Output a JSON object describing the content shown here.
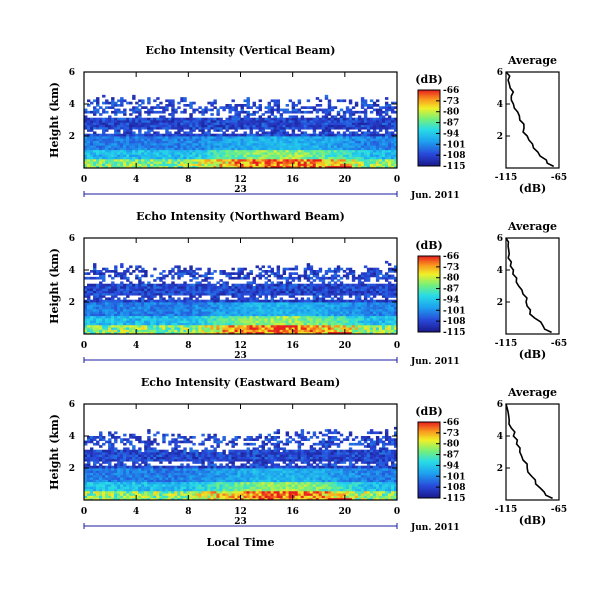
{
  "chart_data": [
    {
      "type": "heatmap",
      "title": "Echo Intensity (Vertical Beam)",
      "ylabel": "Height (km)",
      "x_ticks": [
        "0",
        "4",
        "8",
        "12",
        "16",
        "20",
        "0"
      ],
      "y_ticks": [
        "2",
        "4",
        "6"
      ],
      "xlim": [
        0,
        24
      ],
      "ylim": [
        0,
        6
      ],
      "date_label": "23",
      "date_suffix": "Jun. 2011",
      "xlabel": "",
      "colorbar": {
        "title": "(dB)",
        "ticks": [
          "-66",
          "-73",
          "-80",
          "-87",
          "-94",
          "-101",
          "-108",
          "-115"
        ],
        "range": [
          -115,
          -66
        ]
      },
      "echo_top_km": [
        4.0,
        4.1,
        4.2,
        4.1,
        4.0,
        4.0,
        3.9,
        3.9,
        3.9,
        3.8,
        3.8,
        3.8,
        3.9,
        3.9,
        3.9,
        3.9,
        4.0,
        4.0,
        4.1,
        4.0,
        4.0,
        4.0,
        4.0,
        4.1
      ],
      "average_profile": {
        "title": "Average",
        "xlabel": "(dB)",
        "x_ticks": [
          "-115",
          "-65"
        ],
        "xlim": [
          -115,
          -65
        ],
        "y_ticks": [
          "2",
          "4",
          "6"
        ],
        "ylim": [
          0,
          6
        ],
        "height_km": [
          0.1,
          0.5,
          1.0,
          1.5,
          2.0,
          2.5,
          3.0,
          3.5,
          4.0,
          4.5,
          5.0,
          5.5,
          6.0
        ],
        "value_db": [
          -70,
          -77,
          -85,
          -90,
          -95,
          -98,
          -102,
          -104,
          -108,
          -110,
          -111,
          -113,
          -115
        ]
      }
    },
    {
      "type": "heatmap",
      "title": "Echo Intensity (Northward Beam)",
      "ylabel": "Height (km)",
      "x_ticks": [
        "0",
        "4",
        "8",
        "12",
        "16",
        "20",
        "0"
      ],
      "y_ticks": [
        "2",
        "4",
        "6"
      ],
      "xlim": [
        0,
        24
      ],
      "ylim": [
        0,
        6
      ],
      "date_label": "23",
      "date_suffix": "Jun. 2011",
      "xlabel": "",
      "colorbar": {
        "title": "(dB)",
        "ticks": [
          "-66",
          "-73",
          "-80",
          "-87",
          "-94",
          "-101",
          "-108",
          "-115"
        ],
        "range": [
          -115,
          -66
        ]
      },
      "echo_top_km": [
        3.9,
        4.0,
        4.1,
        4.0,
        3.9,
        3.9,
        3.8,
        3.8,
        3.8,
        3.7,
        3.7,
        3.8,
        3.8,
        3.8,
        3.9,
        3.9,
        3.9,
        4.0,
        4.0,
        4.0,
        3.9,
        4.0,
        4.0,
        4.1
      ],
      "average_profile": {
        "title": "Average",
        "xlabel": "(dB)",
        "x_ticks": [
          "-115",
          "-65"
        ],
        "xlim": [
          -115,
          -65
        ],
        "y_ticks": [
          "2",
          "4",
          "6"
        ],
        "ylim": [
          0,
          6
        ],
        "height_km": [
          0.1,
          0.5,
          1.0,
          1.5,
          2.0,
          2.5,
          3.0,
          3.5,
          4.0,
          4.5,
          5.0,
          5.5,
          6.0
        ],
        "value_db": [
          -72,
          -80,
          -88,
          -92,
          -96,
          -99,
          -103,
          -105,
          -108,
          -110,
          -112,
          -113,
          -115
        ]
      }
    },
    {
      "type": "heatmap",
      "title": "Echo Intensity (Eastward Beam)",
      "ylabel": "Height (km)",
      "x_ticks": [
        "0",
        "4",
        "8",
        "12",
        "16",
        "20",
        "0"
      ],
      "y_ticks": [
        "2",
        "4",
        "6"
      ],
      "xlim": [
        0,
        24
      ],
      "ylim": [
        0,
        6
      ],
      "date_label": "23",
      "date_suffix": "Jun. 2011",
      "xlabel": "Local Time",
      "colorbar": {
        "title": "(dB)",
        "ticks": [
          "-66",
          "-73",
          "-80",
          "-87",
          "-94",
          "-101",
          "-108",
          "-115"
        ],
        "range": [
          -115,
          -66
        ]
      },
      "echo_top_km": [
        3.9,
        4.0,
        4.1,
        4.0,
        3.9,
        3.9,
        3.8,
        3.8,
        3.8,
        3.7,
        3.7,
        3.8,
        3.8,
        3.8,
        3.9,
        3.9,
        3.9,
        4.0,
        4.0,
        4.0,
        3.9,
        4.0,
        4.0,
        4.1
      ],
      "average_profile": {
        "title": "Average",
        "xlabel": "(dB)",
        "x_ticks": [
          "-115",
          "-65"
        ],
        "xlim": [
          -115,
          -65
        ],
        "y_ticks": [
          "2",
          "4",
          "6"
        ],
        "ylim": [
          0,
          6
        ],
        "height_km": [
          0.1,
          0.5,
          1.0,
          1.5,
          2.0,
          2.5,
          3.0,
          3.5,
          4.0,
          4.5,
          5.0,
          5.5,
          6.0
        ],
        "value_db": [
          -71,
          -79,
          -87,
          -91,
          -95,
          -99,
          -102,
          -105,
          -108,
          -110,
          -112,
          -113,
          -115
        ]
      }
    }
  ]
}
